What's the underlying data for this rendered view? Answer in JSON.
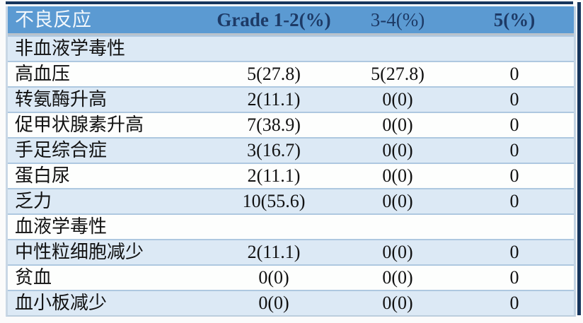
{
  "chart_data": {
    "type": "table",
    "title": "不良反应",
    "columns": [
      "不良反应",
      "Grade 1-2(%)",
      "3-4(%)",
      "5(%)"
    ],
    "rows": [
      {
        "label": "非血液学毒性",
        "section": true,
        "grade12": "",
        "grade34": "",
        "grade5": ""
      },
      {
        "label": "高血压",
        "section": false,
        "grade12": "5(27.8)",
        "grade34": "5(27.8)",
        "grade5": "0"
      },
      {
        "label": "转氨酶升高",
        "section": false,
        "grade12": "2(11.1)",
        "grade34": "0(0)",
        "grade5": "0"
      },
      {
        "label": "促甲状腺素升高",
        "section": false,
        "grade12": "7(38.9)",
        "grade34": "0(0)",
        "grade5": "0"
      },
      {
        "label": "手足综合症",
        "section": false,
        "grade12": "3(16.7)",
        "grade34": "0(0)",
        "grade5": "0"
      },
      {
        "label": "蛋白尿",
        "section": false,
        "grade12": "2(11.1)",
        "grade34": "0(0)",
        "grade5": "0"
      },
      {
        "label": "乏力",
        "section": false,
        "grade12": "10(55.6)",
        "grade34": "0(0)",
        "grade5": "0"
      },
      {
        "label": "血液学毒性",
        "section": true,
        "grade12": "",
        "grade34": "",
        "grade5": ""
      },
      {
        "label": "中性粒细胞减少",
        "section": false,
        "grade12": "2(11.1)",
        "grade34": "0(0)",
        "grade5": "0"
      },
      {
        "label": "贫血",
        "section": false,
        "grade12": "0(0)",
        "grade34": "0(0)",
        "grade5": "0"
      },
      {
        "label": "血小板减少",
        "section": false,
        "grade12": "0(0)",
        "grade34": "0(0)",
        "grade5": "0"
      }
    ],
    "colors": {
      "header_bg": "#5b9ad2",
      "header_label_text": "#f3f8fc",
      "header_value_text": "#1d3a66",
      "row_alt_bg": "#dce9f5",
      "row_bg": "#fdfefd",
      "separator": "#aec8e0",
      "edge_dark": "#17365d"
    }
  }
}
